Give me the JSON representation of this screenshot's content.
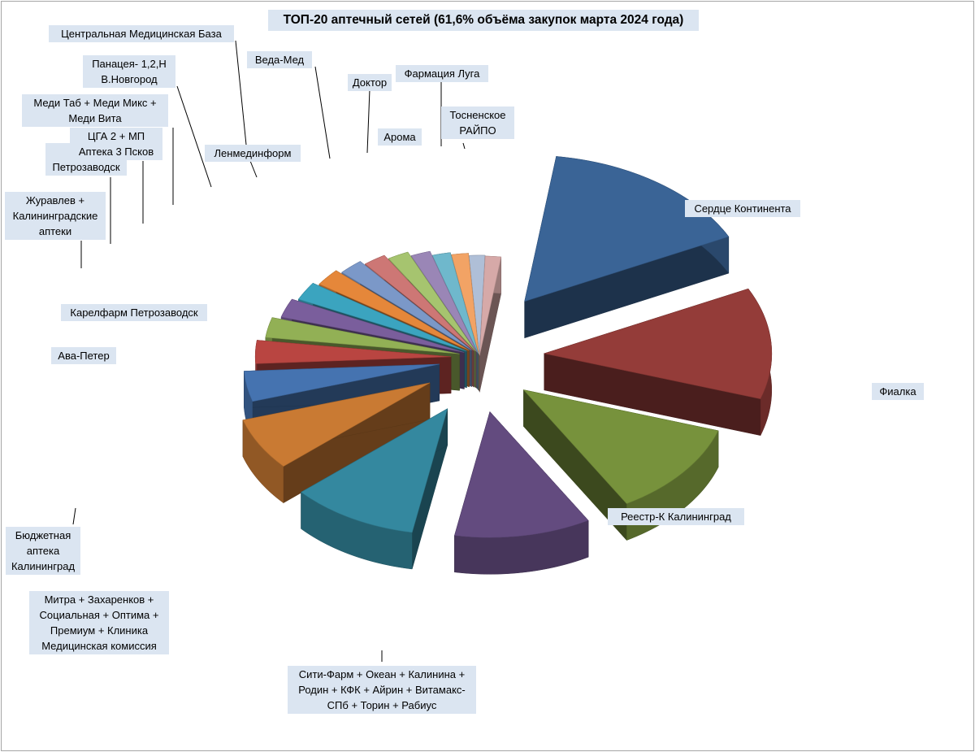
{
  "chart_data": {
    "type": "pie",
    "title": "ТОП-20 аптечный сетей (61,6% объёма закупок марта 2024 года)",
    "slices": [
      {
        "label": "Сердце Континента",
        "value": 15.1,
        "color": "#3a6496"
      },
      {
        "label": "Фиалка",
        "value": 12.0,
        "color": "#943c39"
      },
      {
        "label": "Реестр-К Калининград",
        "value": 11.3,
        "color": "#77923c"
      },
      {
        "label": "Сити-Фарм + Океан + Калинина + Родин + КФК + Айрин + Витамакс-СПб + Торин + Рабиус",
        "value": 11.0,
        "color": "#634b7f"
      },
      {
        "label": "Митра + Захаренков + Социальная + Оптима + Премиум + Клиника Медицинская комиссия",
        "value": 10.3,
        "color": "#34889f"
      },
      {
        "label": "Бюджетная аптека Калининград",
        "value": 6.6,
        "color": "#c97a33"
      },
      {
        "label": "Ава-Петер",
        "value": 3.8,
        "color": "#4573b0"
      },
      {
        "label": "Карелфарм Петрозаводск",
        "value": 2.9,
        "color": "#b94541"
      },
      {
        "label": "Журавлев + Калининградские аптеки",
        "value": 2.5,
        "color": "#92b055"
      },
      {
        "label": "Л Петрозаводск",
        "value": 2.4,
        "color": "#7a5e9c"
      },
      {
        "label": "ЦГА 2 + МП Аптека 3 Псков",
        "value": 2.4,
        "color": "#3ba4bf"
      },
      {
        "label": "Меди Таб + Меди Микс + Меди Вита",
        "value": 2.3,
        "color": "#e5873a"
      },
      {
        "label": "Панацея- 1,2,Н В.Новгород",
        "value": 2.2,
        "color": "#7b98c8"
      },
      {
        "label": "Ленмединформ",
        "value": 2.1,
        "color": "#cd7775"
      },
      {
        "label": "Центральная Медицинская База",
        "value": 2.0,
        "color": "#a6c46f"
      },
      {
        "label": "Веда-Мед",
        "value": 1.9,
        "color": "#9a86b6"
      },
      {
        "label": "Доктор",
        "value": 1.8,
        "color": "#6fb8cc"
      },
      {
        "label": "Арома",
        "value": 1.7,
        "color": "#f2a365"
      },
      {
        "label": "Фармация Луга",
        "value": 1.6,
        "color": "#afbfd7"
      },
      {
        "label": "Тосненское РАЙПО",
        "value": 1.6,
        "color": "#d6a9a8"
      }
    ],
    "legend": "none",
    "exploded": true,
    "style": "3d"
  }
}
